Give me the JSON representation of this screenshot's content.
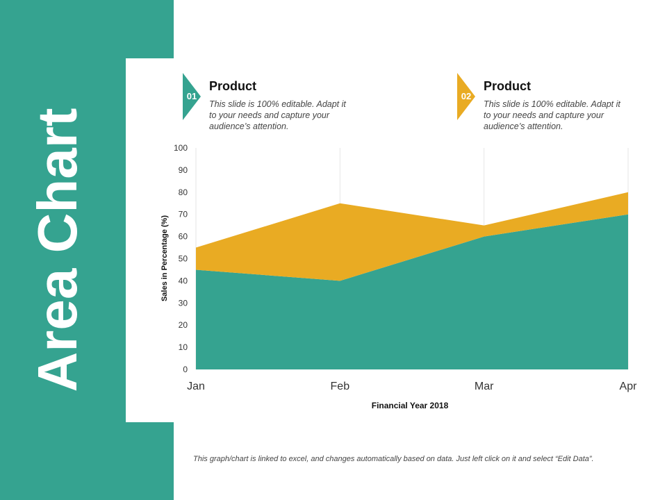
{
  "slide": {
    "title": "Area Chart",
    "footer_note": "This graph/chart is linked to excel, and changes automatically based on data. Just left click on it and select “Edit Data”."
  },
  "legend_items": [
    {
      "number": "01",
      "title": "Product",
      "description": "This slide is 100% editable. Adapt it to your needs and capture your audience’s attention.",
      "color": "#35a390"
    },
    {
      "number": "02",
      "title": "Product",
      "description": "This slide is 100% editable. Adapt it to your needs and capture your audience’s attention.",
      "color": "#e9ab23"
    }
  ],
  "colors": {
    "band": "#35a390",
    "teal": "#35a390",
    "gold": "#e9ab23",
    "grid": "#e6e6e6"
  },
  "chart_data": {
    "type": "area",
    "stacked": true,
    "categories": [
      "Jan",
      "Feb",
      "Mar",
      "Apr"
    ],
    "series": [
      {
        "values": [
          45,
          40,
          60,
          70
        ],
        "color": "#35a390"
      },
      {
        "values": [
          10,
          35,
          5,
          10
        ],
        "color": "#e9ab23"
      }
    ],
    "xlabel": "Financial Year 2018",
    "ylabel": "Sales in Percentage (%)",
    "ylim": [
      0,
      100
    ],
    "yticks": [
      0,
      10,
      20,
      30,
      40,
      50,
      60,
      70,
      80,
      90,
      100
    ],
    "grid": "vertical",
    "legend": "none"
  }
}
